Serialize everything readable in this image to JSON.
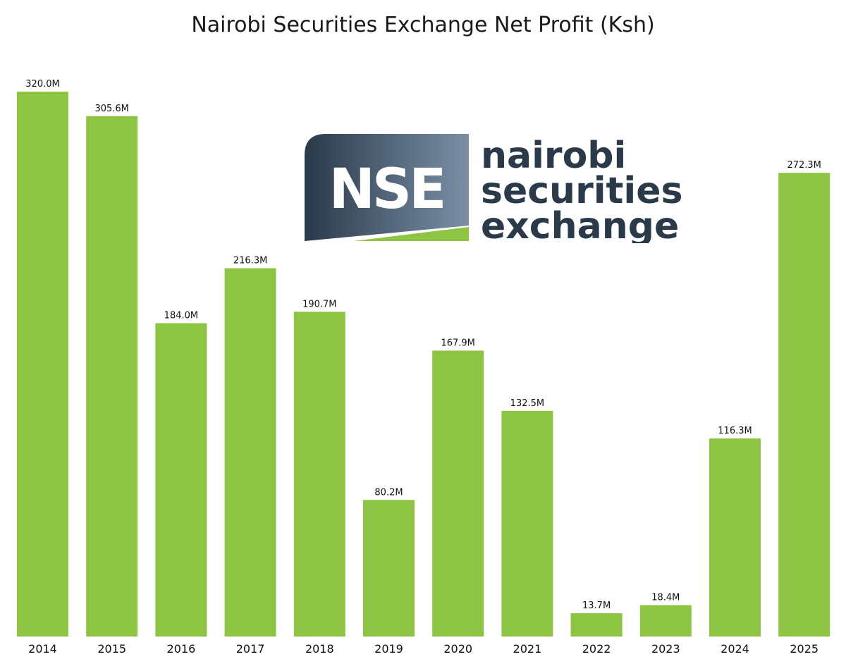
{
  "chart_data": {
    "type": "bar",
    "title": "Nairobi Securities Exchange Net Profit (Ksh)",
    "xlabel": "",
    "ylabel": "",
    "categories": [
      "2014",
      "2015",
      "2016",
      "2017",
      "2018",
      "2019",
      "2020",
      "2021",
      "2022",
      "2023",
      "2024",
      "2025"
    ],
    "values": [
      320.0,
      305.6,
      184.0,
      216.3,
      190.7,
      80.2,
      167.9,
      132.5,
      13.7,
      18.4,
      116.3,
      272.3
    ],
    "value_labels": [
      "320.0M",
      "305.6M",
      "184.0M",
      "216.3M",
      "190.7M",
      "80.2M",
      "167.9M",
      "132.5M",
      "13.7M",
      "18.4M",
      "116.3M",
      "272.3M"
    ],
    "ylim": [
      0,
      320
    ],
    "grid": false,
    "bar_color": "#8dc443"
  },
  "logo": {
    "mark": "NSE",
    "line1": "nairobi",
    "line2": "securities",
    "line3": "exchange",
    "colors": {
      "dark": "#2b3a4a",
      "light": "#7a8fa6",
      "green": "#8dc443"
    }
  }
}
